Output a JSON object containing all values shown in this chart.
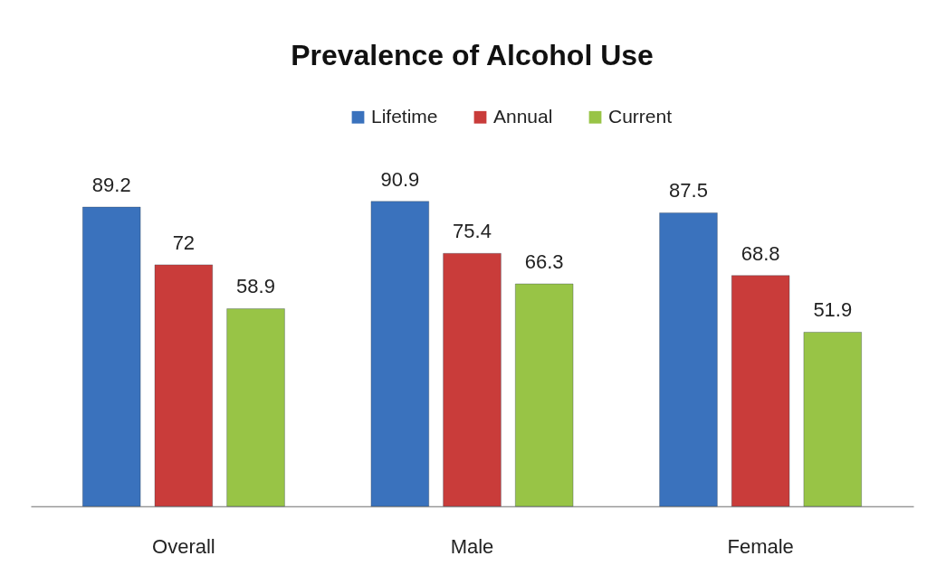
{
  "chart_data": {
    "type": "bar",
    "title": "Prevalence of Alcohol Use",
    "categories": [
      "Overall",
      "Male",
      "Female"
    ],
    "series": [
      {
        "name": "Lifetime",
        "color": "#3a72bd",
        "values": [
          89.2,
          90.9,
          87.5
        ]
      },
      {
        "name": "Annual",
        "color": "#c93c3a",
        "values": [
          72,
          75.4,
          68.8
        ]
      },
      {
        "name": "Current",
        "color": "#98c446",
        "values": [
          58.9,
          66.3,
          51.9
        ]
      }
    ],
    "data_labels": true,
    "legend": "top",
    "grid": false
  }
}
